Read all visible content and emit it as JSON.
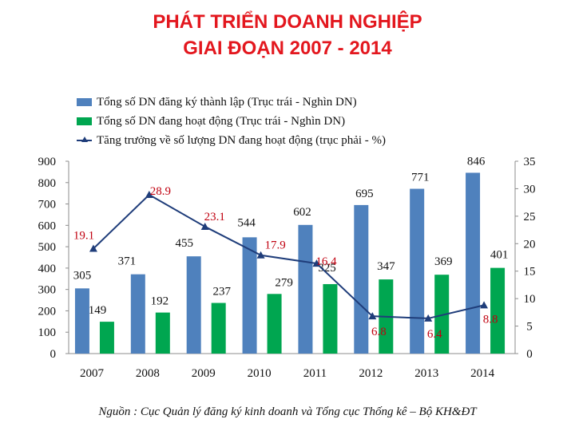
{
  "title_line1": "PHÁT TRIỂN DOANH NGHIỆP",
  "title_line2": "GIAI ĐOẠN 2007 - 2014",
  "source": "Nguồn : Cục Quản lý đăng ký kinh doanh và Tổng cục Thống kê – Bộ KH&ĐT",
  "colors": {
    "title": "#e3171e",
    "registered": "#4f81bd",
    "active": "#00a650",
    "growth": "#1f3d7a",
    "growth_label": "#c0000f"
  },
  "chart_data": {
    "type": "bar",
    "categories": [
      "2007",
      "2008",
      "2009",
      "2010",
      "2011",
      "2012",
      "2013",
      "2014"
    ],
    "series": [
      {
        "name": "Tổng số DN đăng ký thành lập (Trục trái - Nghìn DN)",
        "type": "bar",
        "axis": "left",
        "values": [
          305,
          371,
          455,
          544,
          602,
          695,
          771,
          846
        ]
      },
      {
        "name": "Tổng số DN đang hoạt động (Trục trái - Nghìn DN)",
        "type": "bar",
        "axis": "left",
        "values": [
          149,
          192,
          237,
          279,
          325,
          347,
          369,
          401
        ]
      },
      {
        "name": "Tăng trưởng về số lượng DN đang hoạt động (trục phải - %)",
        "type": "line",
        "axis": "right",
        "values": [
          19.1,
          28.9,
          23.1,
          17.9,
          16.4,
          6.8,
          6.4,
          8.8
        ]
      }
    ],
    "left_axis": {
      "ylim": [
        0,
        900
      ],
      "ticks": [
        "0",
        "100",
        "200",
        "300",
        "400",
        "500",
        "600",
        "700",
        "800",
        "900"
      ]
    },
    "right_axis": {
      "ylim": [
        0,
        35
      ],
      "ticks": [
        "0",
        "5",
        "10",
        "15",
        "20",
        "25",
        "30",
        "35"
      ]
    },
    "grid": false,
    "legend_position": "top"
  }
}
